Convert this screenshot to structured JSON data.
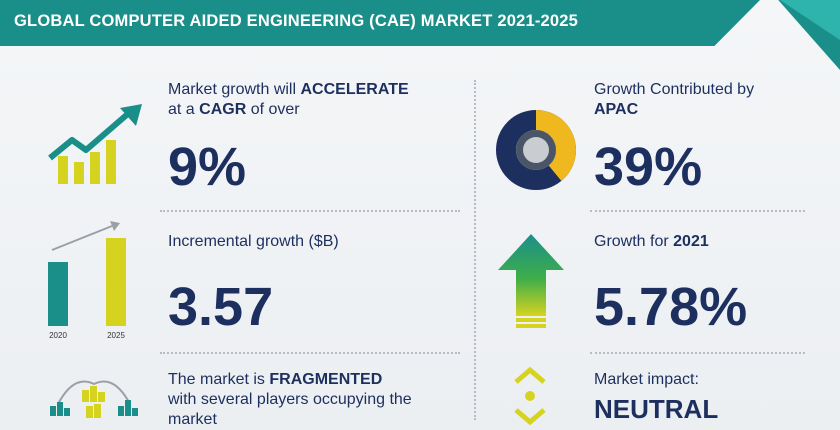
{
  "header": {
    "title": "GLOBAL COMPUTER AIDED ENGINEERING (CAE) MARKET 2021-2025"
  },
  "stats": {
    "cagr": {
      "label_prefix": "Market growth will ",
      "label_emphasis": "ACCELERATE",
      "label_line2_prefix": "at a ",
      "label_line2_emphasis": "CAGR",
      "label_line2_suffix": " of over",
      "value": "9%"
    },
    "incremental": {
      "label": "Incremental growth ($B)",
      "value": "3.57",
      "year_start": "2020",
      "year_end": "2025"
    },
    "fragmented": {
      "label_prefix": "The market is ",
      "label_emphasis": "FRAGMENTED",
      "label_line2": "with several players occupying the",
      "label_line3": "market"
    },
    "apac": {
      "label_line1": "Growth Contributed by",
      "label_line2": "APAC",
      "value": "39%",
      "share": 0.39
    },
    "yoy": {
      "label_prefix": "Growth for ",
      "label_year": "2021",
      "value": "5.78%"
    },
    "impact": {
      "label": "Market impact:",
      "value": "NEUTRAL"
    }
  },
  "colors": {
    "teal": "#1a8f8a",
    "navy": "#1d2f5e",
    "yellow": "#d6d320",
    "gold": "#f0b81f",
    "green": "#3fae49"
  }
}
